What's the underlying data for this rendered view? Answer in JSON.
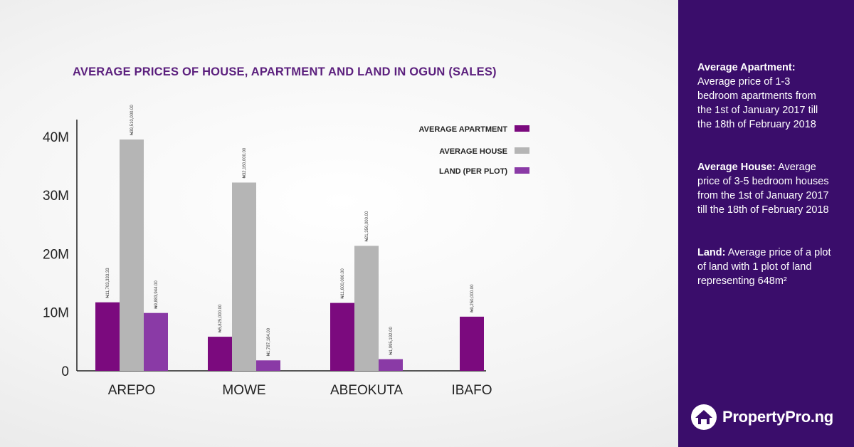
{
  "chart_data": {
    "type": "bar",
    "title": "AVERAGE PRICES OF HOUSE, APARTMENT AND LAND IN OGUN (SALES)",
    "categories": [
      "AREPO",
      "MOWE",
      "ABEOKUTA",
      "IBAFO"
    ],
    "series": [
      {
        "name": "AVERAGE APARTMENT",
        "color": "#7b0a7e",
        "values": [
          11703333.33,
          5825000,
          11600000,
          9250000
        ],
        "labels": [
          "₦11,703,333.33",
          "₦5,825,000.00",
          "₦11,600,000.00",
          "₦9,250,000.00"
        ]
      },
      {
        "name": "AVERAGE HOUSE",
        "color": "#b5b5b5",
        "values": [
          39510000,
          32160000,
          21350000,
          null
        ],
        "labels": [
          "₦39,510,000.00",
          "₦32,160,000.00",
          "₦21,350,000.00",
          ""
        ]
      },
      {
        "name": "LAND (PER PLOT)",
        "color": "#8a3aa6",
        "values": [
          9883944,
          1787184,
          1995192,
          null
        ],
        "labels": [
          "₦9,883,944.00",
          "₦1,787,184.00",
          "₦1,995,192.00",
          ""
        ]
      }
    ],
    "yticks": [
      {
        "value": 0,
        "label": "0"
      },
      {
        "value": 10000000,
        "label": "10M"
      },
      {
        "value": 20000000,
        "label": "20M"
      },
      {
        "value": 30000000,
        "label": "30M"
      },
      {
        "value": 40000000,
        "label": "40M"
      }
    ],
    "ylim": [
      0,
      42000000
    ],
    "grid": false,
    "legend_position": "top-right"
  },
  "side_panel": {
    "notes": [
      {
        "term": "Average Apartment:",
        "text": " Average price of 1-3 bedroom apartments from the 1st of January 2017 till the 18th of February 2018"
      },
      {
        "term": "Average House:",
        "text": " Average price of  3-5 bedroom houses from the 1st of January 2017 till the 18th of February 2018"
      },
      {
        "term": "Land:",
        "text": " Average price of a plot of land with 1 plot of land representing 648m²"
      }
    ],
    "logo_text": "PropertyPro.ng"
  }
}
